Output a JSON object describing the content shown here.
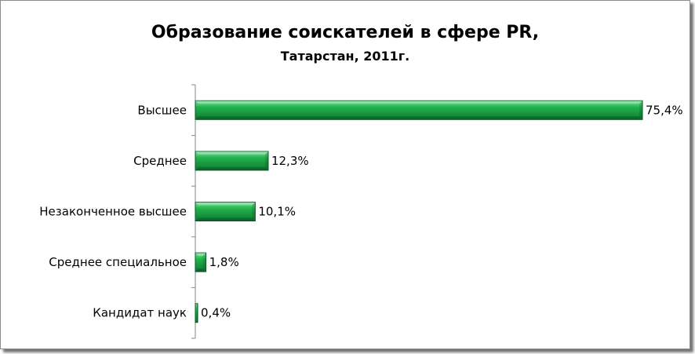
{
  "chart_data": {
    "type": "bar",
    "orientation": "horizontal",
    "title": "Образование соискателей в сфере PR,",
    "subtitle": "Татарстан, 2011г.",
    "categories": [
      "Высшее",
      "Среднее",
      "Незаконченное высшее",
      "Среднее специальное",
      "Кандидат наук"
    ],
    "values": [
      75.4,
      12.3,
      10.1,
      1.8,
      0.4
    ],
    "data_labels": [
      "75,4%",
      "12,3%",
      "10,1%",
      "1,8%",
      "0,4%"
    ],
    "xlim": [
      0,
      75.4
    ],
    "grid": false,
    "legend": "none",
    "colors": {
      "bar": "#22b14c",
      "bar_light": "#6fe397",
      "bar_dark": "#0f7a33",
      "bar_edge": "#0a5a25"
    }
  }
}
